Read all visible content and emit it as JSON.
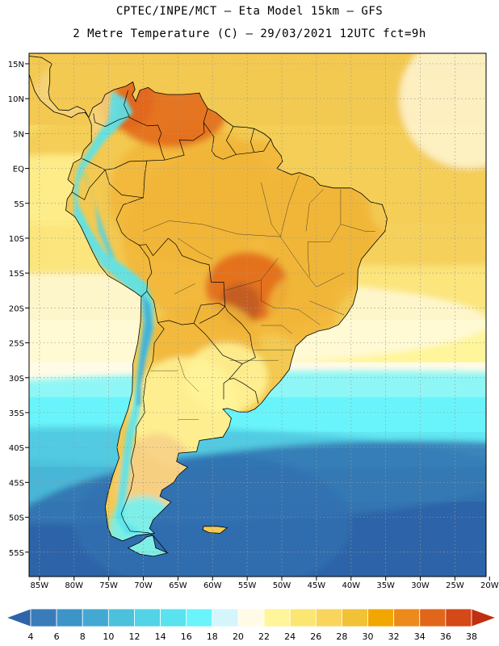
{
  "header": {
    "line1": "CPTEC/INPE/MCT –  Eta Model 15km – GFS",
    "line2": "2 Metre Temperature (C) – 29/03/2021 12UTC fct=9h"
  },
  "map": {
    "lat_labels": [
      "15N",
      "10N",
      "5N",
      "EQ",
      "5S",
      "10S",
      "15S",
      "20S",
      "25S",
      "30S",
      "35S",
      "40S",
      "45S",
      "50S",
      "55S"
    ],
    "lon_labels": [
      "85W",
      "80W",
      "75W",
      "70W",
      "65W",
      "60W",
      "55W",
      "50W",
      "45W",
      "40W",
      "35W",
      "30W",
      "25W",
      "20W"
    ],
    "lat_values": [
      15,
      10,
      5,
      0,
      -5,
      -10,
      -15,
      -20,
      -25,
      -30,
      -35,
      -40,
      -45,
      -50,
      -55
    ],
    "lon_values": [
      -85,
      -80,
      -75,
      -70,
      -65,
      -60,
      -55,
      -50,
      -45,
      -40,
      -35,
      -30,
      -25,
      -20
    ],
    "lat_range": [
      -58.5,
      16.5
    ],
    "lon_range": [
      -86.5,
      -20.5
    ]
  },
  "colorbar": {
    "labels": [
      "4",
      "6",
      "8",
      "10",
      "12",
      "14",
      "16",
      "18",
      "20",
      "22",
      "24",
      "26",
      "28",
      "30",
      "32",
      "34",
      "36",
      "38"
    ],
    "colors": [
      "#2e64a8",
      "#3a7cba",
      "#3d94c8",
      "#44a9d2",
      "#4cc1dc",
      "#52d3e6",
      "#58e3ee",
      "#6af4fb",
      "#d4f5fc",
      "#fffbe6",
      "#fff59a",
      "#fce672",
      "#f9d65b",
      "#f1c136",
      "#f2a600",
      "#ec8a1c",
      "#e2661a",
      "#d34918",
      "#c02f10"
    ]
  },
  "field": {
    "colors": {
      "ocean_north": "#f3c951",
      "ocean_tropic": "#f7d964",
      "ocean_sub": "#fbe57c",
      "ocean_mid": "#fff59a",
      "ocean_cool": "#fffbe6",
      "ocean_cyan": "#6af4fb",
      "ocean_cold": "#4cc1dc",
      "ocean_colder": "#3d94c8",
      "ocean_coldest": "#2e64a8",
      "land": "#f3c951",
      "land_warm": "#f1b63a",
      "land_hot": "#e2661a",
      "land_hotter": "#c05a24",
      "andes": "#58e3ee",
      "andes_high": "#52d3e6",
      "andes_peak": "#44a9d2",
      "patagonia": "#f7d08a",
      "caribbean": "#f6d47d"
    }
  }
}
